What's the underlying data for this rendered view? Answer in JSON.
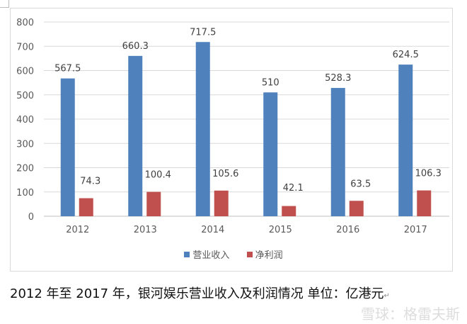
{
  "chart_data": {
    "type": "bar",
    "categories": [
      "2012",
      "2013",
      "2014",
      "2015",
      "2016",
      "2017"
    ],
    "series": [
      {
        "name": "营业收入",
        "color": "#4f81bd",
        "values": [
          567.5,
          660.3,
          717.5,
          510,
          528.3,
          624.5
        ]
      },
      {
        "name": "净利润",
        "color": "#c0504d",
        "values": [
          74.3,
          100.4,
          105.6,
          42.1,
          63.5,
          106.3
        ]
      }
    ],
    "ylim": [
      0,
      800
    ],
    "yticks": [
      0,
      100,
      200,
      300,
      400,
      500,
      600,
      700,
      800
    ],
    "grid": true,
    "legend": "bottom"
  },
  "caption": "2012 年至 2017 年，银河娱乐营业收入及利润情况  单位：亿港元",
  "watermark": "雪球：格雷夫斯"
}
